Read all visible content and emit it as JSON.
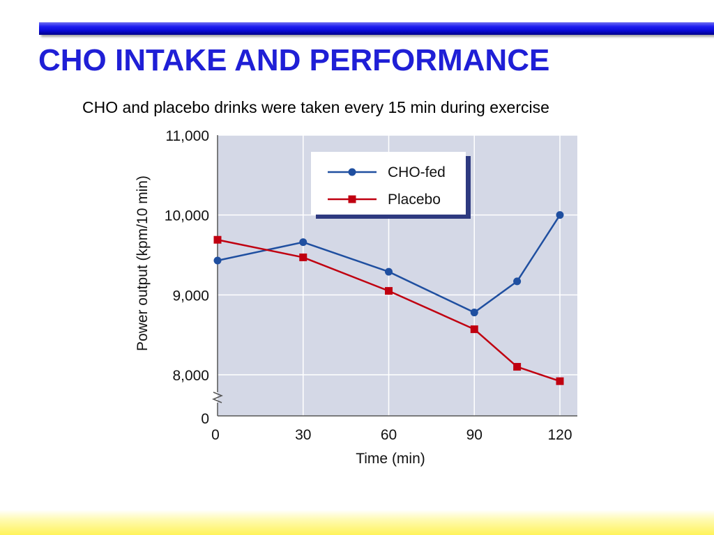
{
  "slide": {
    "title": "CHO INTAKE AND PERFORMANCE",
    "subtitle": "CHO and placebo drinks were taken every 15 min during exercise",
    "colors": {
      "title": "#1f1fd6",
      "top_bar": "#1414e6",
      "bottom_bar": "#fff35a",
      "plot_background": "#d4d8e6"
    }
  },
  "chart_data": {
    "type": "line",
    "xlabel": "Time (min)",
    "ylabel": "Power output (kpm/10 min)",
    "xlim": [
      0,
      120
    ],
    "ylim": [
      7500,
      11000
    ],
    "x_ticks": [
      0,
      30,
      60,
      90,
      120
    ],
    "x_tick_labels": [
      "0",
      "30",
      "60",
      "90",
      "120"
    ],
    "y_ticks": [
      8000,
      9000,
      10000,
      11000
    ],
    "y_tick_labels": [
      "8,000",
      "9,000",
      "10,000",
      "11,000"
    ],
    "y_axis_break": true,
    "y_axis_break_label": "0",
    "grid": true,
    "legend_position": "top-right",
    "series": [
      {
        "name": "CHO-fed",
        "color": "#1f4fa0",
        "marker": "circle",
        "x": [
          0,
          30,
          60,
          90,
          105,
          120
        ],
        "y": [
          9430,
          9660,
          9290,
          8780,
          9170,
          10000
        ]
      },
      {
        "name": "Placebo",
        "color": "#c00010",
        "marker": "square",
        "x": [
          0,
          30,
          60,
          90,
          105,
          120
        ],
        "y": [
          9690,
          9470,
          9050,
          8570,
          8100,
          7920
        ]
      }
    ]
  }
}
